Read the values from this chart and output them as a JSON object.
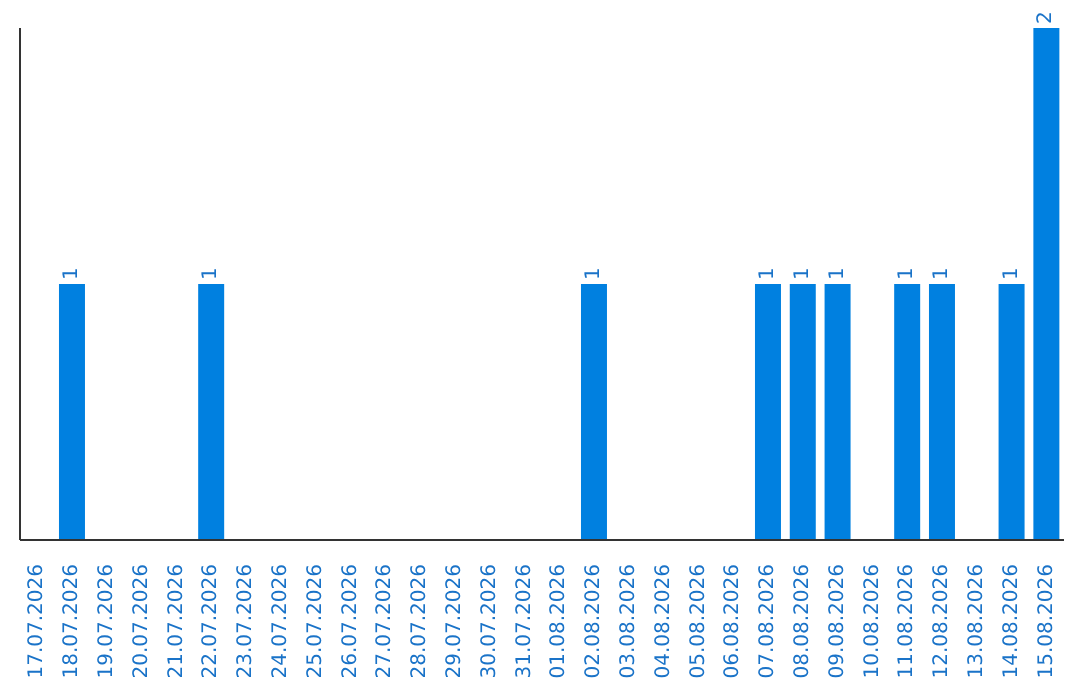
{
  "chart_data": {
    "type": "bar",
    "categories": [
      "17.07.2026",
      "18.07.2026",
      "19.07.2026",
      "20.07.2026",
      "21.07.2026",
      "22.07.2026",
      "23.07.2026",
      "24.07.2026",
      "25.07.2026",
      "26.07.2026",
      "27.07.2026",
      "28.07.2026",
      "29.07.2026",
      "30.07.2026",
      "31.07.2026",
      "01.08.2026",
      "02.08.2026",
      "03.08.2026",
      "04.08.2026",
      "05.08.2026",
      "06.08.2026",
      "07.08.2026",
      "08.08.2026",
      "09.08.2026",
      "10.08.2026",
      "11.08.2026",
      "12.08.2026",
      "13.08.2026",
      "14.08.2026",
      "15.08.2026"
    ],
    "values": [
      0,
      1,
      0,
      0,
      0,
      1,
      0,
      0,
      0,
      0,
      0,
      0,
      0,
      0,
      0,
      0,
      1,
      0,
      0,
      0,
      0,
      1,
      1,
      1,
      0,
      1,
      1,
      0,
      1,
      2
    ],
    "value_labels": [
      null,
      "1",
      null,
      null,
      null,
      "1",
      null,
      null,
      null,
      null,
      null,
      null,
      null,
      null,
      null,
      null,
      "1",
      null,
      null,
      null,
      null,
      "1",
      "1",
      "1",
      null,
      "1",
      "1",
      null,
      "1",
      "2"
    ],
    "color": "#0080e0"
  }
}
